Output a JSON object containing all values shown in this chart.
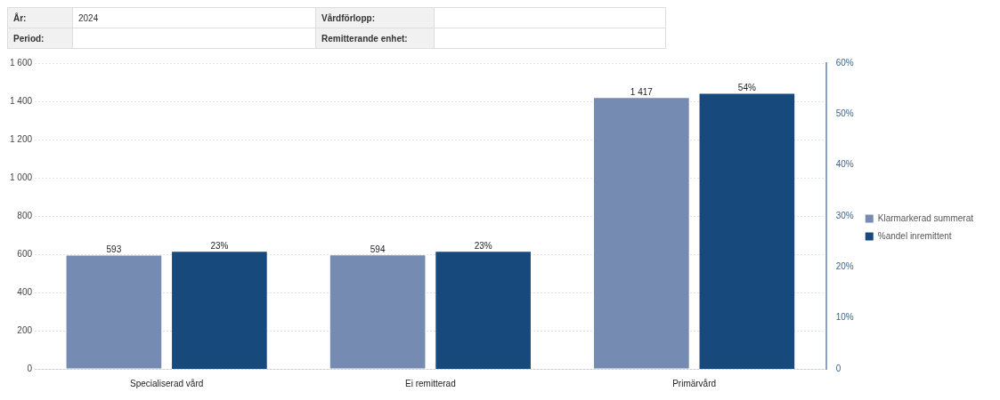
{
  "chart_data": {
    "type": "bar",
    "annotations": [
      "År:",
      "2024",
      "Vårdförlopp:",
      "Period:",
      "Remitterande enhet:"
    ],
    "categories": [
      "Specialiserad vård",
      "Ei remitterad",
      "Primärvård"
    ],
    "series": [
      {
        "name": "Klarmarkerad summerat",
        "color": "#758bb1",
        "values": [
          593,
          594,
          1417
        ],
        "value_labels": [
          "593",
          "594",
          "1 417"
        ]
      },
      {
        "name": "%andel inremittent",
        "color": "#17497c",
        "axis": "y2",
        "values": [
          23,
          23,
          54
        ],
        "value_labels": [
          "23%",
          "23%",
          "54%"
        ]
      }
    ],
    "ylim": [
      0,
      1600
    ],
    "yticks": [
      0,
      200,
      400,
      600,
      800,
      {
        "value": 1000,
        "label": "1 000"
      },
      {
        "value": 1200,
        "label": "1 200"
      },
      {
        "value": 1400,
        "label": "1 400"
      },
      {
        "value": 1600,
        "label": "1 600"
      }
    ],
    "y2lim": [
      0,
      60
    ],
    "y2ticks": [
      0,
      {
        "value": 10,
        "label": "10%"
      },
      {
        "value": 20,
        "label": "20%"
      },
      {
        "value": 30,
        "label": "30%"
      },
      {
        "value": 40,
        "label": "40%"
      },
      {
        "value": 50,
        "label": "50%"
      },
      {
        "value": 60,
        "label": "60%"
      }
    ],
    "grid": "y",
    "legend": "right"
  }
}
